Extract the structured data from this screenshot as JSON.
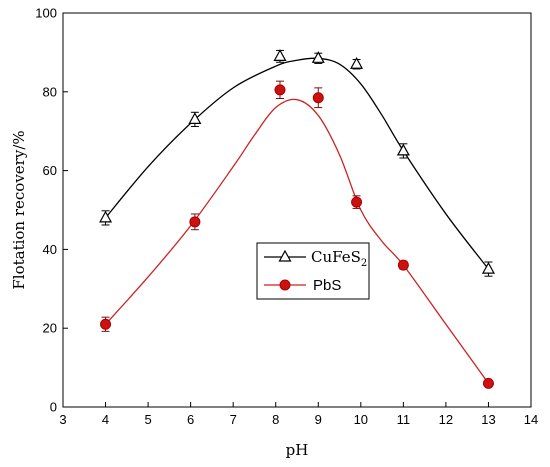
{
  "chart_data": {
    "type": "scatter",
    "xlabel": "pH",
    "ylabel": "Flotation recovery/%",
    "xlim": [
      3,
      14
    ],
    "ylim": [
      0,
      100
    ],
    "xticks": [
      3,
      4,
      5,
      6,
      7,
      8,
      9,
      10,
      11,
      12,
      13,
      14
    ],
    "yticks": [
      0,
      20,
      40,
      60,
      80,
      100
    ],
    "grid": false,
    "legend_position": "center-right",
    "series": [
      {
        "name": "CuFeS",
        "name_subscript": "2",
        "marker": "open-triangle",
        "color": "#000000",
        "x": [
          4,
          6.1,
          8.1,
          9,
          9.9,
          11,
          13
        ],
        "y": [
          48,
          73,
          89,
          88.5,
          87,
          65,
          35
        ],
        "err": [
          1.8,
          1.8,
          1.5,
          1.3,
          1.2,
          1.8,
          1.8
        ]
      },
      {
        "name": "PbS",
        "marker": "filled-circle",
        "color": "#cc1111",
        "x": [
          4,
          6.1,
          8.1,
          9,
          9.9,
          11,
          13
        ],
        "y": [
          21,
          47,
          80.5,
          78.5,
          52,
          36,
          6
        ],
        "err": [
          1.8,
          2.0,
          2.2,
          2.5,
          1.6,
          1.0,
          0.8
        ]
      }
    ],
    "fit_curves": [
      {
        "series": "CuFeS2",
        "color": "#000000",
        "x": [
          4,
          5,
          6,
          7,
          8,
          8.5,
          9,
          9.5,
          10,
          10.5,
          11,
          12,
          13
        ],
        "y": [
          48,
          61,
          72,
          81,
          86.5,
          88,
          88.5,
          87,
          82,
          74,
          65,
          49,
          35
        ]
      },
      {
        "series": "PbS",
        "color": "#cc2222",
        "x": [
          4,
          5,
          6,
          7,
          7.5,
          8,
          8.5,
          9,
          9.5,
          10,
          10.5,
          11,
          12,
          13
        ],
        "y": [
          21,
          33,
          46,
          61,
          69,
          76,
          78,
          74,
          64,
          50,
          42,
          36,
          21,
          6
        ]
      }
    ]
  }
}
